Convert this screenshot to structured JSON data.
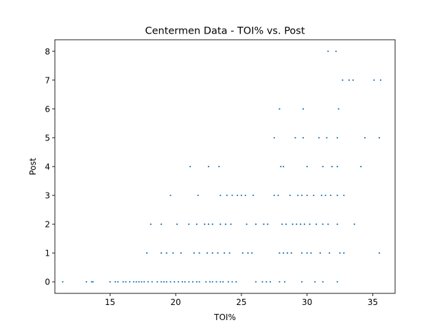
{
  "chart_data": {
    "type": "scatter",
    "title": "Centermen Data - TOI% vs. Post",
    "xlabel": "TOI%",
    "ylabel": "Post",
    "xlim": [
      10.8,
      36.7
    ],
    "ylim": [
      -0.4,
      8.4
    ],
    "xticks": [
      15,
      20,
      25,
      30,
      35
    ],
    "yticks": [
      0,
      1,
      2,
      3,
      4,
      5,
      6,
      7,
      8
    ],
    "xtick_labels": [
      "15",
      "20",
      "25",
      "30",
      "35"
    ],
    "ytick_labels": [
      "0",
      "1",
      "2",
      "3",
      "4",
      "5",
      "6",
      "7",
      "8"
    ],
    "grid": false,
    "legend": "none",
    "colors": {
      "point": "#1f77b4"
    },
    "series": [
      {
        "points": [
          [
            11.4,
            0
          ],
          [
            13.2,
            0
          ],
          [
            13.6,
            0
          ],
          [
            13.7,
            0
          ],
          [
            15.0,
            0
          ],
          [
            15.4,
            0
          ],
          [
            15.6,
            0
          ],
          [
            16.0,
            0
          ],
          [
            16.2,
            0
          ],
          [
            16.5,
            0
          ],
          [
            16.8,
            0
          ],
          [
            17.0,
            0
          ],
          [
            17.2,
            0
          ],
          [
            17.4,
            0
          ],
          [
            17.6,
            0
          ],
          [
            17.9,
            0
          ],
          [
            18.2,
            0
          ],
          [
            18.6,
            0
          ],
          [
            18.9,
            0
          ],
          [
            19.1,
            0
          ],
          [
            19.3,
            0
          ],
          [
            19.6,
            0
          ],
          [
            19.9,
            0
          ],
          [
            20.2,
            0
          ],
          [
            20.5,
            0
          ],
          [
            20.7,
            0
          ],
          [
            21.0,
            0
          ],
          [
            21.3,
            0
          ],
          [
            21.6,
            0
          ],
          [
            21.8,
            0
          ],
          [
            22.3,
            0
          ],
          [
            22.6,
            0
          ],
          [
            22.8,
            0
          ],
          [
            23.1,
            0
          ],
          [
            23.4,
            0
          ],
          [
            23.6,
            0
          ],
          [
            24.0,
            0
          ],
          [
            24.3,
            0
          ],
          [
            24.6,
            0
          ],
          [
            26.1,
            0
          ],
          [
            26.6,
            0
          ],
          [
            26.9,
            0
          ],
          [
            27.2,
            0
          ],
          [
            27.9,
            0
          ],
          [
            28.3,
            0
          ],
          [
            29.6,
            0
          ],
          [
            30.6,
            0
          ],
          [
            31.2,
            0
          ],
          [
            32.3,
            0
          ],
          [
            17.8,
            1
          ],
          [
            18.9,
            1
          ],
          [
            19.3,
            1
          ],
          [
            19.8,
            1
          ],
          [
            20.4,
            1
          ],
          [
            21.4,
            1
          ],
          [
            21.8,
            1
          ],
          [
            22.4,
            1
          ],
          [
            22.8,
            1
          ],
          [
            23.2,
            1
          ],
          [
            23.7,
            1
          ],
          [
            24.1,
            1
          ],
          [
            25.1,
            1
          ],
          [
            25.5,
            1
          ],
          [
            25.8,
            1
          ],
          [
            27.9,
            1
          ],
          [
            28.2,
            1
          ],
          [
            28.5,
            1
          ],
          [
            28.8,
            1
          ],
          [
            29.6,
            1
          ],
          [
            30.0,
            1
          ],
          [
            30.3,
            1
          ],
          [
            31.0,
            1
          ],
          [
            31.7,
            1
          ],
          [
            32.5,
            1
          ],
          [
            32.8,
            1
          ],
          [
            35.5,
            1
          ],
          [
            18.1,
            2
          ],
          [
            18.9,
            2
          ],
          [
            20.1,
            2
          ],
          [
            21.0,
            2
          ],
          [
            21.6,
            2
          ],
          [
            22.2,
            2
          ],
          [
            22.5,
            2
          ],
          [
            22.8,
            2
          ],
          [
            23.4,
            2
          ],
          [
            23.8,
            2
          ],
          [
            24.2,
            2
          ],
          [
            25.4,
            2
          ],
          [
            26.1,
            2
          ],
          [
            26.7,
            2
          ],
          [
            27.0,
            2
          ],
          [
            28.1,
            2
          ],
          [
            28.4,
            2
          ],
          [
            28.9,
            2
          ],
          [
            29.2,
            2
          ],
          [
            29.5,
            2
          ],
          [
            29.8,
            2
          ],
          [
            30.2,
            2
          ],
          [
            30.7,
            2
          ],
          [
            31.2,
            2
          ],
          [
            31.6,
            2
          ],
          [
            32.3,
            2
          ],
          [
            33.6,
            2
          ],
          [
            19.6,
            3
          ],
          [
            21.7,
            3
          ],
          [
            23.4,
            3
          ],
          [
            23.9,
            3
          ],
          [
            24.3,
            3
          ],
          [
            24.7,
            3
          ],
          [
            25.0,
            3
          ],
          [
            25.3,
            3
          ],
          [
            25.9,
            3
          ],
          [
            27.5,
            3
          ],
          [
            27.8,
            3
          ],
          [
            28.7,
            3
          ],
          [
            29.3,
            3
          ],
          [
            29.6,
            3
          ],
          [
            30.0,
            3
          ],
          [
            30.5,
            3
          ],
          [
            31.1,
            3
          ],
          [
            31.4,
            3
          ],
          [
            31.8,
            3
          ],
          [
            32.3,
            3
          ],
          [
            32.8,
            3
          ],
          [
            21.1,
            4
          ],
          [
            22.5,
            4
          ],
          [
            23.3,
            4
          ],
          [
            28.0,
            4
          ],
          [
            28.2,
            4
          ],
          [
            30.0,
            4
          ],
          [
            31.2,
            4
          ],
          [
            31.9,
            4
          ],
          [
            32.3,
            4
          ],
          [
            34.1,
            4
          ],
          [
            27.5,
            5
          ],
          [
            29.1,
            5
          ],
          [
            29.7,
            5
          ],
          [
            30.9,
            5
          ],
          [
            31.5,
            5
          ],
          [
            32.3,
            5
          ],
          [
            34.4,
            5
          ],
          [
            35.5,
            5
          ],
          [
            27.9,
            6
          ],
          [
            29.7,
            6
          ],
          [
            32.4,
            6
          ],
          [
            32.7,
            7
          ],
          [
            33.2,
            7
          ],
          [
            33.5,
            7
          ],
          [
            35.1,
            7
          ],
          [
            35.6,
            7
          ],
          [
            31.6,
            8
          ],
          [
            32.2,
            8
          ]
        ]
      }
    ]
  }
}
